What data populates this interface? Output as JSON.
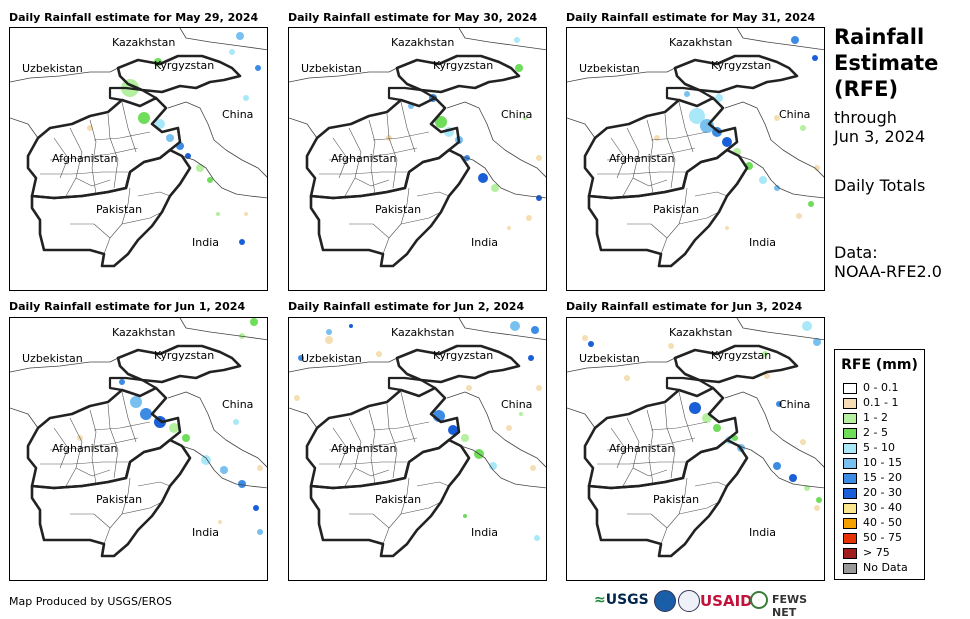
{
  "panels": [
    {
      "title": "Daily Rainfall estimate for May 29, 2024"
    },
    {
      "title": "Daily Rainfall estimate for May 30, 2024"
    },
    {
      "title": "Daily Rainfall estimate for May 31, 2024"
    },
    {
      "title": "Daily Rainfall estimate for Jun 1, 2024"
    },
    {
      "title": "Daily Rainfall estimate for Jun 2, 2024"
    },
    {
      "title": "Daily Rainfall estimate for Jun 3, 2024"
    }
  ],
  "map_labels": {
    "kazakhstan": "Kazakhstan",
    "uzbekistan": "Uzbekistan",
    "kyrgyzstan": "Kyrgyzstan",
    "china": "China",
    "afghanistan": "Afghanistan",
    "pakistan": "Pakistan",
    "india": "India"
  },
  "sidebar": {
    "title_line1": "Rainfall",
    "title_line2": "Estimate",
    "title_line3": "(RFE)",
    "through": "through",
    "date": "Jun 3, 2024",
    "totals": "Daily Totals",
    "data_label": "Data:",
    "data_source": "NOAA-RFE2.0"
  },
  "legend": {
    "title": "RFE (mm)",
    "items": [
      {
        "label": "0 - 0.1",
        "color": "#ffffff"
      },
      {
        "label": "0.1 - 1",
        "color": "#f5deb3"
      },
      {
        "label": "1 - 2",
        "color": "#b4f0a0"
      },
      {
        "label": "2 - 5",
        "color": "#6fdc5a"
      },
      {
        "label": "5 - 10",
        "color": "#a8e8f8"
      },
      {
        "label": "10 - 15",
        "color": "#78c0f0"
      },
      {
        "label": "15 - 20",
        "color": "#3c8ce6"
      },
      {
        "label": "20 - 30",
        "color": "#1a5fd8"
      },
      {
        "label": "30 - 40",
        "color": "#fae68c"
      },
      {
        "label": "40 - 50",
        "color": "#f5a000"
      },
      {
        "label": "50 - 75",
        "color": "#e63200"
      },
      {
        "label": "> 75",
        "color": "#a01e1e"
      },
      {
        "label": "No Data",
        "color": "#999999"
      }
    ]
  },
  "credit": "Map Produced by USGS/EROS",
  "logos": {
    "usgs": "USGS",
    "usaid": "USAID",
    "fews": "FEWS NET"
  }
}
